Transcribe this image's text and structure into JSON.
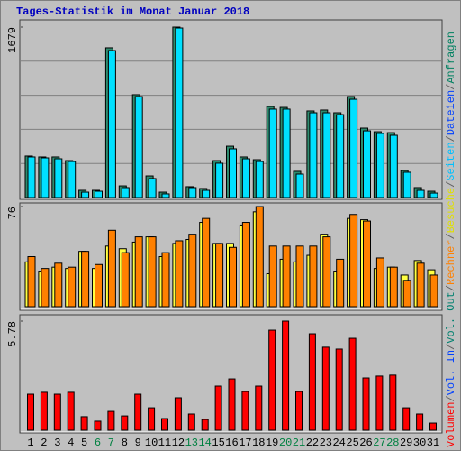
{
  "chart_data": [
    {
      "type": "bar",
      "title": "Tages-Statistik im Monat Januar 2018",
      "ylim": [
        0,
        1679
      ],
      "yticks": [
        1679
      ],
      "series": [
        {
          "color": "#2e8b6e",
          "values": [
            409,
            400,
            400,
            364,
            71,
            71,
            1475,
            115,
            1013,
            213,
            53,
            1679,
            107,
            89,
            364,
            506,
            400,
            373,
            897,
            888,
            258,
            853,
            862,
            835,
            995,
            684,
            648,
            639,
            266,
            98,
            62
          ]
        },
        {
          "color": "#00e0ff",
          "values": [
            400,
            391,
            382,
            355,
            53,
            62,
            1448,
            98,
            995,
            187,
            36,
            1670,
            98,
            71,
            338,
            480,
            382,
            355,
            871,
            871,
            231,
            835,
            835,
            817,
            968,
            657,
            631,
            613,
            249,
            71,
            44
          ]
        }
      ]
    },
    {
      "type": "bar",
      "ylim": [
        0,
        76
      ],
      "yticks": [
        76
      ],
      "series": [
        {
          "color": "#ffff40",
          "values": [
            34,
            27,
            30,
            29,
            42,
            29,
            46,
            44,
            49,
            53,
            38,
            48,
            51,
            64,
            48,
            48,
            62,
            72,
            25,
            36,
            34,
            39,
            55,
            27,
            67,
            66,
            29,
            30,
            24,
            35,
            28
          ]
        },
        {
          "color": "#ff8000",
          "values": [
            38,
            29,
            33,
            30,
            42,
            32,
            58,
            41,
            53,
            53,
            41,
            50,
            55,
            67,
            48,
            45,
            64,
            76,
            46,
            46,
            46,
            46,
            53,
            36,
            70,
            65,
            37,
            30,
            20,
            33,
            24
          ]
        }
      ]
    },
    {
      "type": "bar",
      "ylim": [
        0,
        5.78
      ],
      "yticks": [
        5.78
      ],
      "categories": [
        "1",
        "2",
        "3",
        "4",
        "5",
        "6",
        "7",
        "8",
        "9",
        "10",
        "11",
        "12",
        "13",
        "14",
        "15",
        "16",
        "17",
        "18",
        "19",
        "20",
        "21",
        "22",
        "23",
        "24",
        "25",
        "26",
        "27",
        "28",
        "29",
        "30",
        "31"
      ],
      "category_colors": [
        "#000000",
        "#000000",
        "#000000",
        "#000000",
        "#000000",
        "#008040",
        "#008040",
        "#000000",
        "#000000",
        "#000000",
        "#000000",
        "#000000",
        "#008040",
        "#008040",
        "#000000",
        "#000000",
        "#000000",
        "#000000",
        "#000000",
        "#008040",
        "#008040",
        "#000000",
        "#000000",
        "#000000",
        "#000000",
        "#000000",
        "#008040",
        "#008040",
        "#000000",
        "#000000",
        "#000000"
      ],
      "series": [
        {
          "color": "#ff0000",
          "values": [
            1.91,
            2.01,
            1.91,
            2.01,
            0.72,
            0.48,
            1.0,
            0.76,
            1.91,
            1.19,
            0.62,
            1.72,
            0.86,
            0.57,
            2.34,
            2.72,
            2.05,
            2.34,
            5.3,
            5.78,
            2.05,
            5.11,
            4.4,
            4.3,
            4.87,
            2.77,
            2.87,
            2.92,
            1.19,
            0.86,
            0.38
          ]
        }
      ]
    }
  ],
  "legend_separator": "/",
  "legend": [
    {
      "label": "Volumen",
      "color": "#ff0000"
    },
    {
      "label": "Vol. In",
      "color": "#0040ff"
    },
    {
      "label": "Vol. Out",
      "color": "#00806f"
    },
    {
      "label": "Rechner",
      "color": "#ff8000"
    },
    {
      "label": "Besuche",
      "color": "#e0e000"
    },
    {
      "label": "Seiten",
      "color": "#00c0ff"
    },
    {
      "label": "Dateien",
      "color": "#0040ff"
    },
    {
      "label": "Anfragen",
      "color": "#008060"
    }
  ]
}
